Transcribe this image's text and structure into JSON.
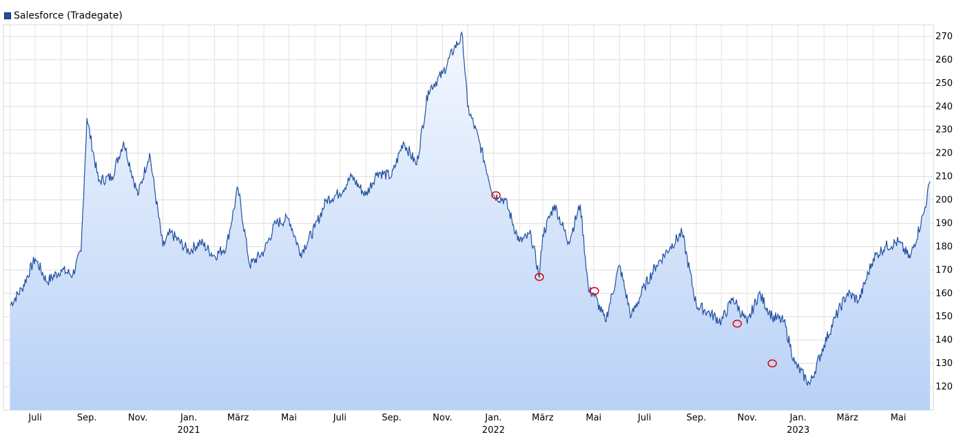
{
  "chart_data": {
    "type": "area",
    "title": "",
    "legend": [
      {
        "name": "Salesforce (Tradegate)",
        "color": "#1f4ea1"
      }
    ],
    "ylim": [
      110,
      275
    ],
    "y_ticks": [
      120,
      130,
      140,
      150,
      160,
      170,
      180,
      190,
      200,
      210,
      220,
      230,
      240,
      250,
      260,
      270
    ],
    "x_ticks": [
      {
        "label": "Juli",
        "year": ""
      },
      {
        "label": "Sep.",
        "year": ""
      },
      {
        "label": "Nov.",
        "year": ""
      },
      {
        "label": "Jan.",
        "year": "2021"
      },
      {
        "label": "März",
        "year": ""
      },
      {
        "label": "Mai",
        "year": ""
      },
      {
        "label": "Juli",
        "year": ""
      },
      {
        "label": "Sep.",
        "year": ""
      },
      {
        "label": "Nov.",
        "year": ""
      },
      {
        "label": "Jan.",
        "year": "2022"
      },
      {
        "label": "März",
        "year": ""
      },
      {
        "label": "Mai",
        "year": ""
      },
      {
        "label": "Juli",
        "year": ""
      },
      {
        "label": "Sep.",
        "year": ""
      },
      {
        "label": "Nov.",
        "year": ""
      },
      {
        "label": "Jan.",
        "year": "2023"
      },
      {
        "label": "März",
        "year": ""
      },
      {
        "label": "Mai",
        "year": ""
      }
    ],
    "series": [
      {
        "name": "Salesforce (Tradegate)",
        "x": [
          "2020-06-01",
          "2020-06-15",
          "2020-07-01",
          "2020-07-15",
          "2020-08-01",
          "2020-08-15",
          "2020-08-25",
          "2020-09-01",
          "2020-09-15",
          "2020-10-01",
          "2020-10-15",
          "2020-11-01",
          "2020-11-15",
          "2020-12-01",
          "2020-12-10",
          "2021-01-01",
          "2021-01-15",
          "2021-02-01",
          "2021-02-15",
          "2021-03-01",
          "2021-03-15",
          "2021-04-01",
          "2021-04-15",
          "2021-05-01",
          "2021-05-15",
          "2021-06-01",
          "2021-06-15",
          "2021-07-01",
          "2021-07-15",
          "2021-08-01",
          "2021-08-15",
          "2021-09-01",
          "2021-09-15",
          "2021-10-01",
          "2021-10-15",
          "2021-11-01",
          "2021-11-15",
          "2021-11-25",
          "2021-12-01",
          "2021-12-15",
          "2022-01-01",
          "2022-01-15",
          "2022-02-01",
          "2022-02-15",
          "2022-02-25",
          "2022-03-01",
          "2022-03-15",
          "2022-04-01",
          "2022-04-15",
          "2022-04-25",
          "2022-05-01",
          "2022-05-15",
          "2022-06-01",
          "2022-06-15",
          "2022-07-01",
          "2022-07-15",
          "2022-08-01",
          "2022-08-15",
          "2022-09-01",
          "2022-09-15",
          "2022-10-01",
          "2022-10-15",
          "2022-11-01",
          "2022-11-15",
          "2022-12-01",
          "2022-12-15",
          "2022-12-28",
          "2023-01-15",
          "2023-02-01",
          "2023-02-15",
          "2023-03-01",
          "2023-03-15",
          "2023-04-01",
          "2023-04-15",
          "2023-05-01",
          "2023-05-15",
          "2023-06-01",
          "2023-06-08"
        ],
        "values": [
          155,
          162,
          175,
          165,
          170,
          168,
          178,
          235,
          208,
          210,
          225,
          202,
          220,
          180,
          186,
          178,
          182,
          176,
          180,
          205,
          172,
          178,
          190,
          192,
          177,
          188,
          200,
          203,
          210,
          202,
          212,
          210,
          225,
          215,
          247,
          254,
          265,
          270,
          240,
          225,
          202,
          200,
          182,
          185,
          167,
          185,
          198,
          182,
          198,
          161,
          160,
          148,
          172,
          150,
          163,
          172,
          180,
          186,
          155,
          152,
          148,
          158,
          147,
          160,
          150,
          148,
          130,
          121,
          138,
          150,
          160,
          157,
          175,
          180,
          182,
          175,
          195,
          208
        ],
        "color": "#1f4ea1"
      }
    ],
    "annotations": [
      {
        "type": "circle-marker",
        "x": "2022-01-04",
        "y": 202
      },
      {
        "type": "circle-marker",
        "x": "2022-02-25",
        "y": 167
      },
      {
        "type": "circle-marker",
        "x": "2022-05-02",
        "y": 161
      },
      {
        "type": "circle-marker",
        "x": "2022-10-20",
        "y": 147
      },
      {
        "type": "circle-marker",
        "x": "2022-12-01",
        "y": 130
      }
    ],
    "grid": true
  }
}
